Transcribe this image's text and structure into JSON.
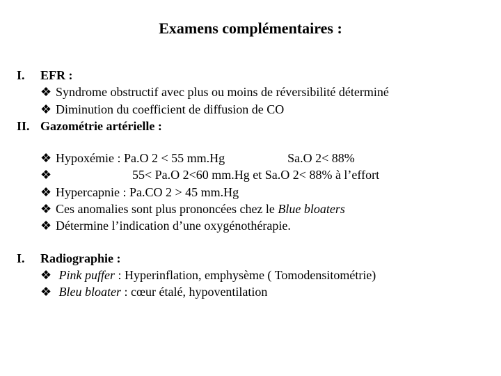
{
  "title": "Examens complémentaires :",
  "section1": {
    "num": "I.",
    "heading": "EFR :",
    "bullets": [
      "Syndrome obstructif avec plus ou moins de réversibilité déterminé",
      "Diminution du coefficient de diffusion de CO"
    ]
  },
  "section2": {
    "num": "II.",
    "heading": "Gazométrie artérielle :",
    "b1a": "Hypoxémie : Pa.O 2 < 55 mm.Hg",
    "b1b": "Sa.O 2< 88%",
    "b2a": "55< Pa.O 2<60 mm.Hg   et Sa.O 2< 88% à l’effort",
    "b3": "Hypercapnie : Pa.CO 2 > 45 mm.Hg",
    "b4a": "Ces anomalies sont plus prononcées chez le ",
    "b4b": "Blue bloaters",
    "b5": "Détermine l’indication d’une oxygénothérapie."
  },
  "section3": {
    "num": "I.",
    "heading": "Radiographie :",
    "r1a": "Pink puffer",
    "r1b": " : Hyperinflation, emphysème ( Tomodensitométrie)",
    "r2a": "Bleu bloater",
    "r2b": " : cœur étalé, hypoventilation"
  },
  "marker": "❖"
}
